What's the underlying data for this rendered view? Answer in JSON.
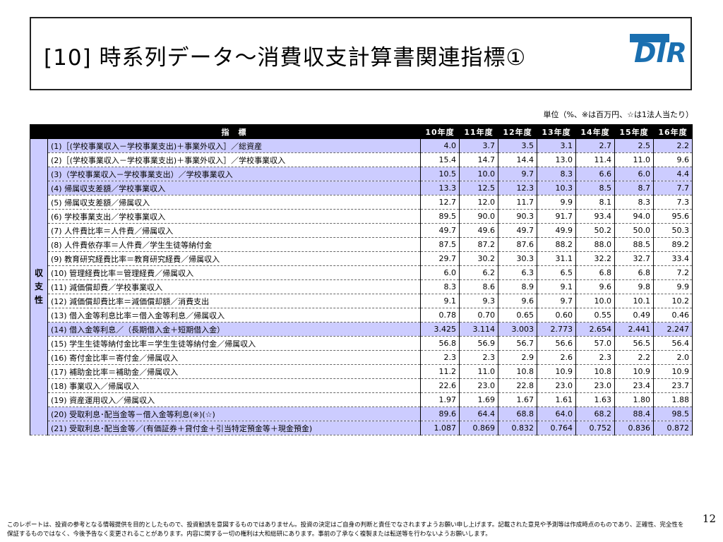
{
  "title": "[10] 時系列データ～消費収支計算書関連指標①",
  "logo": {
    "text": "DIR",
    "color": "#1a6fb0"
  },
  "unit_note": "単位（%、※は百万円、☆は1法人当たり）",
  "table": {
    "header_label": "指　標",
    "years": [
      "10年度",
      "11年度",
      "12年度",
      "13年度",
      "14年度",
      "15年度",
      "16年度"
    ],
    "category": "収支性",
    "rows": [
      {
        "label": "(1)［(学校事業収入－学校事業支出)＋事業外収入］／総資産",
        "values": [
          "4.0",
          "3.7",
          "3.5",
          "3.1",
          "2.7",
          "2.5",
          "2.2"
        ],
        "highlight": true
      },
      {
        "label": "(2)［(学校事業収入－学校事業支出)＋事業外収入］／学校事業収入",
        "values": [
          "15.4",
          "14.7",
          "14.4",
          "13.0",
          "11.4",
          "11.0",
          "9.6"
        ],
        "highlight": false
      },
      {
        "label": "(3)（学校事業収入－学校事業支出）／学校事業収入",
        "values": [
          "10.5",
          "10.0",
          "9.7",
          "8.3",
          "6.6",
          "6.0",
          "4.4"
        ],
        "highlight": true
      },
      {
        "label": "(4) 帰属収支差額／学校事業収入",
        "values": [
          "13.3",
          "12.5",
          "12.3",
          "10.3",
          "8.5",
          "8.7",
          "7.7"
        ],
        "highlight": true
      },
      {
        "label": "(5) 帰属収支差額／帰属収入",
        "values": [
          "12.7",
          "12.0",
          "11.7",
          "9.9",
          "8.1",
          "8.3",
          "7.3"
        ],
        "highlight": false
      },
      {
        "label": "(6) 学校事業支出／学校事業収入",
        "values": [
          "89.5",
          "90.0",
          "90.3",
          "91.7",
          "93.4",
          "94.0",
          "95.6"
        ],
        "highlight": false
      },
      {
        "label": "(7) 人件費比率＝人件費／帰属収入",
        "values": [
          "49.7",
          "49.6",
          "49.7",
          "49.9",
          "50.2",
          "50.0",
          "50.3"
        ],
        "highlight": false
      },
      {
        "label": "(8) 人件費依存率＝人件費／学生生徒等納付金",
        "values": [
          "87.5",
          "87.2",
          "87.6",
          "88.2",
          "88.0",
          "88.5",
          "89.2"
        ],
        "highlight": false
      },
      {
        "label": "(9) 教育研究経費比率＝教育研究経費／帰属収入",
        "values": [
          "29.7",
          "30.2",
          "30.3",
          "31.1",
          "32.2",
          "32.7",
          "33.4"
        ],
        "highlight": false
      },
      {
        "label": "(10) 管理経費比率＝管理経費／帰属収入",
        "values": [
          "6.0",
          "6.2",
          "6.3",
          "6.5",
          "6.8",
          "6.8",
          "7.2"
        ],
        "highlight": false
      },
      {
        "label": "(11) 減価償却費／学校事業収入",
        "values": [
          "8.3",
          "8.6",
          "8.9",
          "9.1",
          "9.6",
          "9.8",
          "9.9"
        ],
        "highlight": false
      },
      {
        "label": "(12) 減価償却費比率＝減価償却額／消費支出",
        "values": [
          "9.1",
          "9.3",
          "9.6",
          "9.7",
          "10.0",
          "10.1",
          "10.2"
        ],
        "highlight": false
      },
      {
        "label": "(13) 借入金等利息比率＝借入金等利息／帰属収入",
        "values": [
          "0.78",
          "0.70",
          "0.65",
          "0.60",
          "0.55",
          "0.49",
          "0.46"
        ],
        "highlight": false
      },
      {
        "label": "(14) 借入金等利息／（長期借入金＋短期借入金）",
        "values": [
          "3.425",
          "3.114",
          "3.003",
          "2.773",
          "2.654",
          "2.441",
          "2.247"
        ],
        "highlight": true
      },
      {
        "label": "(15) 学生生徒等納付金比率＝学生生徒等納付金／帰属収入",
        "values": [
          "56.8",
          "56.9",
          "56.7",
          "56.6",
          "57.0",
          "56.5",
          "56.4"
        ],
        "highlight": false
      },
      {
        "label": "(16) 寄付金比率＝寄付金／帰属収入",
        "values": [
          "2.3",
          "2.3",
          "2.9",
          "2.6",
          "2.3",
          "2.2",
          "2.0"
        ],
        "highlight": false
      },
      {
        "label": "(17) 補助金比率＝補助金／帰属収入",
        "values": [
          "11.2",
          "11.0",
          "10.8",
          "10.9",
          "10.8",
          "10.9",
          "10.9"
        ],
        "highlight": false
      },
      {
        "label": "(18) 事業収入／帰属収入",
        "values": [
          "22.6",
          "23.0",
          "22.8",
          "23.0",
          "23.0",
          "23.4",
          "23.7"
        ],
        "highlight": false
      },
      {
        "label": "(19) 資産運用収入／帰属収入",
        "values": [
          "1.97",
          "1.69",
          "1.67",
          "1.61",
          "1.63",
          "1.80",
          "1.88"
        ],
        "highlight": false
      },
      {
        "label": "(20) 受取利息･配当金等－借入金等利息(※)(☆)",
        "values": [
          "89.6",
          "64.4",
          "68.8",
          "64.0",
          "68.2",
          "88.4",
          "98.5"
        ],
        "highlight": true
      },
      {
        "label": "(21) 受取利息･配当金等／(有価証券＋貸付金＋引当特定預金等＋現金預金)",
        "values": [
          "1.087",
          "0.869",
          "0.832",
          "0.764",
          "0.752",
          "0.836",
          "0.872"
        ],
        "highlight": true
      }
    ]
  },
  "footer": "このレポートは、投資の参考となる情報提供を目的としたもので、投資勧誘を意図するものではありません。投資の決定はご自身の判断と責任でなされますようお願い申し上げます。記載された意見や予測等は作成時点のものであり、正確性、完全性を保証するものではなく、今後予告なく変更されることがあります。内容に関する一切の権利は大和総研にあります。事前の了承なく複製または転送等を行わないようお願いします。",
  "page_number": "12"
}
